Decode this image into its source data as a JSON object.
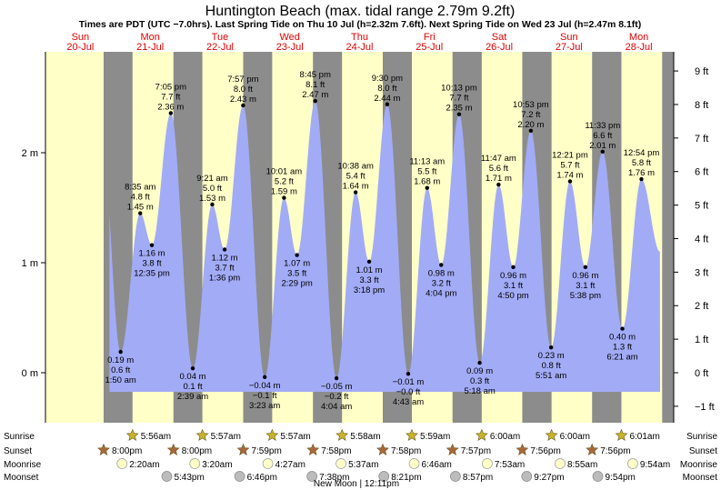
{
  "title": "Huntington Beach (max. tidal range 2.79m 9.2ft)",
  "subtitle": "Times are PDT (UTC −7.0hrs). Last Spring Tide on Thu 10 Jul (h=2.32m 7.6ft). Next Spring Tide on Wed 23 Jul (h=2.47m 8.1ft)",
  "days": [
    {
      "name": "Sun",
      "date": "20-Jul"
    },
    {
      "name": "Mon",
      "date": "21-Jul"
    },
    {
      "name": "Tue",
      "date": "22-Jul"
    },
    {
      "name": "Wed",
      "date": "23-Jul"
    },
    {
      "name": "Thu",
      "date": "24-Jul"
    },
    {
      "name": "Fri",
      "date": "25-Jul"
    },
    {
      "name": "Sat",
      "date": "26-Jul"
    },
    {
      "name": "Sun",
      "date": "27-Jul"
    },
    {
      "name": "Mon",
      "date": "28-Jul"
    }
  ],
  "chart_data": {
    "type": "area",
    "x_unit": "hours since Sun 20-Jul 00:00 PDT",
    "y_unit": "m",
    "ylim_m": [
      -0.55,
      2.9
    ],
    "left_ticks": [
      {
        "v": 0,
        "label": "0 m"
      },
      {
        "v": 1,
        "label": "1 m"
      },
      {
        "v": 2,
        "label": "2 m"
      }
    ],
    "right_ticks": [
      {
        "ft": -1,
        "label": "−1 ft"
      },
      {
        "ft": 0,
        "label": "0 ft"
      },
      {
        "ft": 1,
        "label": "1 ft"
      },
      {
        "ft": 2,
        "label": "2 ft"
      },
      {
        "ft": 3,
        "label": "3 ft"
      },
      {
        "ft": 4,
        "label": "4 ft"
      },
      {
        "ft": 5,
        "label": "5 ft"
      },
      {
        "ft": 6,
        "label": "6 ft"
      },
      {
        "ft": 7,
        "label": "7 ft"
      },
      {
        "ft": 8,
        "label": "8 ft"
      },
      {
        "ft": 9,
        "label": "9 ft"
      }
    ],
    "start_level_m": 2.1,
    "end_level_m": 1.1,
    "tides": [
      {
        "t": 25.833,
        "h": 0.19,
        "time": "1:50 am",
        "ft": "0.6 ft",
        "m": "0.19 m",
        "hl": "low"
      },
      {
        "t": 32.583,
        "h": 1.45,
        "time": "8:35 am",
        "ft": "4.8 ft",
        "m": "1.45 m",
        "hl": "high"
      },
      {
        "t": 36.583,
        "h": 1.16,
        "time": "12:35 pm",
        "ft": "3.8 ft",
        "m": "1.16 m",
        "hl": "low"
      },
      {
        "t": 43.083,
        "h": 2.36,
        "time": "7:05 pm",
        "ft": "7.7 ft",
        "m": "2.36 m",
        "hl": "high"
      },
      {
        "t": 50.65,
        "h": 0.04,
        "time": "2:39 am",
        "ft": "0.1 ft",
        "m": "0.04 m",
        "hl": "low"
      },
      {
        "t": 57.35,
        "h": 1.53,
        "time": "9:21 am",
        "ft": "5.0 ft",
        "m": "1.53 m",
        "hl": "high"
      },
      {
        "t": 61.6,
        "h": 1.12,
        "time": "1:36 pm",
        "ft": "3.7 ft",
        "m": "1.12 m",
        "hl": "low"
      },
      {
        "t": 67.95,
        "h": 2.43,
        "time": "7:57 pm",
        "ft": "8.0 ft",
        "m": "2.43 m",
        "hl": "high"
      },
      {
        "t": 75.383,
        "h": -0.04,
        "time": "3:23 am",
        "ft": "−0.1 ft",
        "m": "−0.04 m",
        "hl": "low"
      },
      {
        "t": 82.017,
        "h": 1.59,
        "time": "10:01 am",
        "ft": "5.2 ft",
        "m": "1.59 m",
        "hl": "high"
      },
      {
        "t": 86.483,
        "h": 1.07,
        "time": "2:29 pm",
        "ft": "3.5 ft",
        "m": "1.07 m",
        "hl": "low"
      },
      {
        "t": 92.75,
        "h": 2.47,
        "time": "8:45 pm",
        "ft": "8.1 ft",
        "m": "2.47 m",
        "hl": "high"
      },
      {
        "t": 100.067,
        "h": -0.05,
        "time": "4:04 am",
        "ft": "−0.2 ft",
        "m": "−0.05 m",
        "hl": "low"
      },
      {
        "t": 106.633,
        "h": 1.64,
        "time": "10:38 am",
        "ft": "5.4 ft",
        "m": "1.64 m",
        "hl": "high"
      },
      {
        "t": 111.3,
        "h": 1.01,
        "time": "3:18 pm",
        "ft": "3.3 ft",
        "m": "1.01 m",
        "hl": "low"
      },
      {
        "t": 117.5,
        "h": 2.44,
        "time": "9:30 pm",
        "ft": "8.0 ft",
        "m": "2.44 m",
        "hl": "high"
      },
      {
        "t": 124.717,
        "h": -0.01,
        "time": "4:43 am",
        "ft": "−0.0 ft",
        "m": "−0.01 m",
        "hl": "low"
      },
      {
        "t": 131.217,
        "h": 1.68,
        "time": "11:13 am",
        "ft": "5.5 ft",
        "m": "1.68 m",
        "hl": "high"
      },
      {
        "t": 136.067,
        "h": 0.98,
        "time": "4:04 pm",
        "ft": "3.2 ft",
        "m": "0.98 m",
        "hl": "low"
      },
      {
        "t": 142.217,
        "h": 2.35,
        "time": "10:13 pm",
        "ft": "7.7 ft",
        "m": "2.35 m",
        "hl": "high"
      },
      {
        "t": 149.3,
        "h": 0.09,
        "time": "5:18 am",
        "ft": "0.3 ft",
        "m": "0.09 m",
        "hl": "low"
      },
      {
        "t": 155.783,
        "h": 1.71,
        "time": "11:47 am",
        "ft": "5.6 ft",
        "m": "1.71 m",
        "hl": "high"
      },
      {
        "t": 160.833,
        "h": 0.96,
        "time": "4:50 pm",
        "ft": "3.1 ft",
        "m": "0.96 m",
        "hl": "low"
      },
      {
        "t": 166.883,
        "h": 2.2,
        "time": "10:53 pm",
        "ft": "7.2 ft",
        "m": "2.20 m",
        "hl": "high"
      },
      {
        "t": 173.85,
        "h": 0.23,
        "time": "5:51 am",
        "ft": "0.8 ft",
        "m": "0.23 m",
        "hl": "low"
      },
      {
        "t": 180.35,
        "h": 1.74,
        "time": "12:21 pm",
        "ft": "5.7 ft",
        "m": "1.74 m",
        "hl": "high"
      },
      {
        "t": 185.633,
        "h": 0.96,
        "time": "5:38 pm",
        "ft": "3.1 ft",
        "m": "0.96 m",
        "hl": "low"
      },
      {
        "t": 191.55,
        "h": 2.01,
        "time": "11:33 pm",
        "ft": "6.6 ft",
        "m": "2.01 m",
        "hl": "high"
      },
      {
        "t": 198.35,
        "h": 0.4,
        "time": "6:21 am",
        "ft": "1.3 ft",
        "m": "0.40 m",
        "hl": "low"
      },
      {
        "t": 204.9,
        "h": 1.76,
        "time": "12:54 pm",
        "ft": "5.8 ft",
        "m": "1.76 m",
        "hl": "high"
      }
    ]
  },
  "astro": {
    "row_labels": [
      "Sunrise",
      "Sunset",
      "Moonrise",
      "Moonset"
    ],
    "sunrise": [
      {
        "t": 29.933,
        "label": "5:56am"
      },
      {
        "t": 53.95,
        "label": "5:57am"
      },
      {
        "t": 77.95,
        "label": "5:57am"
      },
      {
        "t": 101.967,
        "label": "5:58am"
      },
      {
        "t": 125.983,
        "label": "5:59am"
      },
      {
        "t": 150.0,
        "label": "6:00am"
      },
      {
        "t": 174.0,
        "label": "6:00am"
      },
      {
        "t": 198.017,
        "label": "6:01am"
      }
    ],
    "sunset": [
      {
        "t": 20.0,
        "label": "8:00pm"
      },
      {
        "t": 44.0,
        "label": "8:00pm"
      },
      {
        "t": 67.983,
        "label": "7:59pm"
      },
      {
        "t": 91.967,
        "label": "7:58pm"
      },
      {
        "t": 115.967,
        "label": "7:58pm"
      },
      {
        "t": 139.95,
        "label": "7:57pm"
      },
      {
        "t": 163.933,
        "label": "7:56pm"
      },
      {
        "t": 187.933,
        "label": "7:56pm"
      }
    ],
    "moonrise": [
      {
        "t": 26.333,
        "label": "2:20am"
      },
      {
        "t": 51.333,
        "label": "3:20am"
      },
      {
        "t": 76.45,
        "label": "4:27am"
      },
      {
        "t": 101.617,
        "label": "5:37am"
      },
      {
        "t": 126.767,
        "label": "6:46am"
      },
      {
        "t": 151.883,
        "label": "7:53am"
      },
      {
        "t": 176.917,
        "label": "8:55am"
      },
      {
        "t": 201.9,
        "label": "9:54am"
      }
    ],
    "moonset": [
      {
        "t": 41.717,
        "label": "5:43pm"
      },
      {
        "t": 66.767,
        "label": "6:46pm"
      },
      {
        "t": 91.633,
        "label": "7:38pm"
      },
      {
        "t": 116.35,
        "label": "8:21pm"
      },
      {
        "t": 140.95,
        "label": "8:57pm"
      },
      {
        "t": 165.45,
        "label": "9:27pm"
      },
      {
        "t": 189.9,
        "label": "9:54pm"
      }
    ],
    "moon_phase": "New Moon | 12:11pm"
  },
  "colors": {
    "day": "#ffffc8",
    "night": "#8c8c8c",
    "tide_fill": "#a2abf6",
    "day_label": "#e00000",
    "sun_icon": "#c8b428",
    "sunset_icon": "#a8683c",
    "moonrise_icon": "#ffffc8",
    "moonset_icon": "#bcbcbc"
  }
}
